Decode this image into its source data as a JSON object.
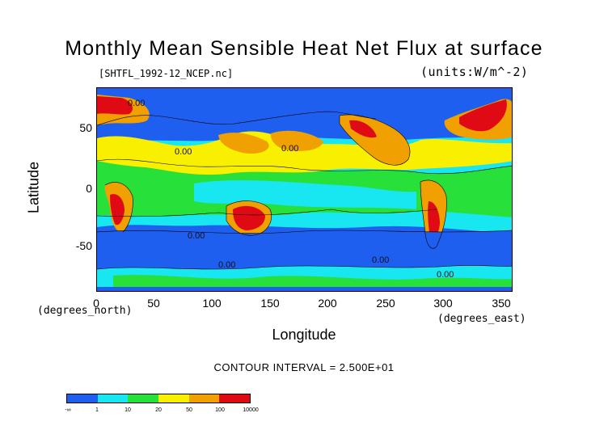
{
  "title": "Monthly Mean Sensible Heat Net Flux at surface",
  "file_label": "[SHTFL_1992-12_NCEP.nc]",
  "units_label": "(units:W/m^-2)",
  "ylabel": "Latitude",
  "xlabel": "Longitude",
  "ylabel_units": "(degrees_north)",
  "xlabel_units": "(degrees_east)",
  "contour_interval": "CONTOUR INTERVAL = 2.500E+01",
  "map_labels": [
    "0.00",
    "0.00",
    "0.00",
    "0.00",
    "0.00",
    "0.00",
    "0.00"
  ],
  "colors": {
    "blue": "#1f5ff0",
    "cyan": "#18e6f0",
    "green": "#28e03a",
    "yellow": "#f8f000",
    "orange": "#f0a000",
    "red": "#e00a14"
  },
  "chart_data": {
    "type": "heatmap",
    "title": "Monthly Mean Sensible Heat Net Flux at surface",
    "xlabel": "Longitude",
    "ylabel": "Latitude",
    "xlim": [
      0,
      360
    ],
    "ylim": [
      -90,
      90
    ],
    "x_ticks": [
      "0",
      "50",
      "100",
      "150",
      "200",
      "250",
      "300",
      "350"
    ],
    "y_ticks": [
      "50",
      "0",
      "-50"
    ],
    "colorbar": {
      "labels": [
        "-∞",
        "1",
        "10",
        "20",
        "50",
        "100",
        "10000"
      ],
      "bins": [
        "<1",
        "1-10",
        "10-20",
        "20-50",
        "50-100",
        ">100"
      ],
      "colors": [
        "#1f5ff0",
        "#18e6f0",
        "#28e03a",
        "#f8f000",
        "#f0a000",
        "#e00a14"
      ]
    }
  }
}
